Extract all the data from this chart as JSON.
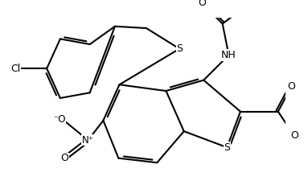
{
  "bg": "#ffffff",
  "lc": "#000000",
  "figsize": [
    3.83,
    2.35
  ],
  "dpi": 100,
  "lw": 1.5,
  "fs": 9.0,
  "xlim": [
    -4.8,
    4.2
  ],
  "ylim": [
    -1.8,
    4.0
  ]
}
